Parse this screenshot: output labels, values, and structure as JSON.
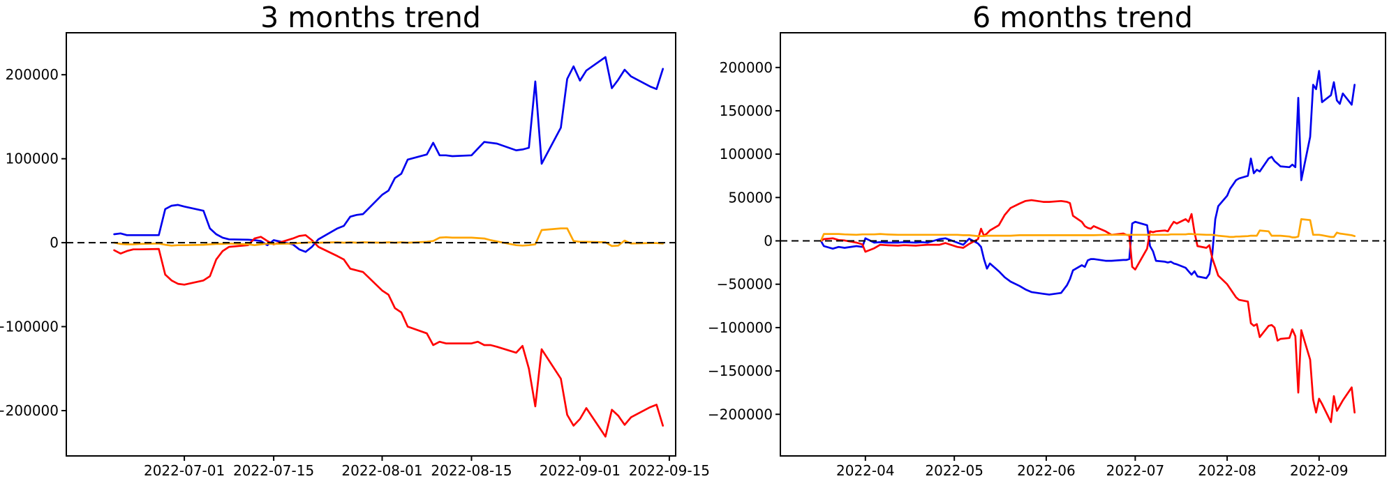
{
  "figure": {
    "background": "#ffffff",
    "text_color": "#000000"
  },
  "chart_data": [
    {
      "type": "line",
      "title": "3 months trend",
      "x_type": "date",
      "grid": false,
      "legend": null,
      "zero_line": {
        "color": "#000000",
        "style": "dashed"
      },
      "x_axis": {
        "domain": [
          "2022-06-12T12:00:00Z",
          "2022-09-16T00:00:00Z"
        ],
        "ticks": [
          {
            "date": "2022-07-01",
            "label": "2022-07-01"
          },
          {
            "date": "2022-07-15",
            "label": "2022-07-15"
          },
          {
            "date": "2022-08-01",
            "label": "2022-08-01"
          },
          {
            "date": "2022-08-15",
            "label": "2022-08-15"
          },
          {
            "date": "2022-09-01",
            "label": "2022-09-01"
          },
          {
            "date": "2022-09-15",
            "label": "2022-09-15"
          }
        ]
      },
      "y_axis": {
        "domain": [
          -254000,
          250000
        ],
        "ticks": [
          200000,
          100000,
          0,
          -100000,
          -200000
        ]
      },
      "x": [
        "2022-06-20",
        "2022-06-21",
        "2022-06-22",
        "2022-06-23",
        "2022-06-24",
        "2022-06-27",
        "2022-06-28",
        "2022-06-29",
        "2022-06-30",
        "2022-07-01",
        "2022-07-04",
        "2022-07-05",
        "2022-07-06",
        "2022-07-07",
        "2022-07-08",
        "2022-07-11",
        "2022-07-12",
        "2022-07-13",
        "2022-07-14",
        "2022-07-15",
        "2022-07-18",
        "2022-07-19",
        "2022-07-20",
        "2022-07-21",
        "2022-07-22",
        "2022-07-25",
        "2022-07-26",
        "2022-07-27",
        "2022-07-28",
        "2022-07-29",
        "2022-08-01",
        "2022-08-02",
        "2022-08-03",
        "2022-08-04",
        "2022-08-05",
        "2022-08-08",
        "2022-08-09",
        "2022-08-10",
        "2022-08-11",
        "2022-08-12",
        "2022-08-15",
        "2022-08-16",
        "2022-08-17",
        "2022-08-18",
        "2022-08-19",
        "2022-08-22",
        "2022-08-23",
        "2022-08-24",
        "2022-08-25",
        "2022-08-26",
        "2022-08-29",
        "2022-08-30",
        "2022-08-31",
        "2022-09-01",
        "2022-09-02",
        "2022-09-05",
        "2022-09-06",
        "2022-09-07",
        "2022-09-08",
        "2022-09-09",
        "2022-09-12",
        "2022-09-13",
        "2022-09-14"
      ],
      "series": [
        {
          "name": "blue-series",
          "color": "#0000ee",
          "values": [
            10000,
            11000,
            9000,
            9000,
            9000,
            9000,
            40000,
            44000,
            45000,
            43000,
            38000,
            17000,
            10000,
            6000,
            4000,
            3500,
            3000,
            2000,
            -3000,
            3000,
            -2000,
            -8000,
            -11000,
            -5000,
            4000,
            17000,
            20000,
            31000,
            33000,
            34000,
            57000,
            62000,
            77000,
            82000,
            99000,
            105000,
            119000,
            104000,
            104000,
            103000,
            104000,
            112000,
            120000,
            119000,
            118000,
            110000,
            111000,
            113000,
            192000,
            94000,
            137000,
            195000,
            210000,
            193000,
            205000,
            221000,
            184000,
            194000,
            206000,
            198000,
            186000,
            183000,
            207000
          ]
        },
        {
          "name": "red-series",
          "color": "#ff0000",
          "values": [
            -9000,
            -13000,
            -10000,
            -8000,
            -8000,
            -7500,
            -38000,
            -45000,
            -49000,
            -50000,
            -45000,
            -40000,
            -20000,
            -10000,
            -5000,
            -3000,
            5000,
            7000,
            2000,
            -2000,
            5000,
            8000,
            9000,
            3000,
            -5000,
            -16000,
            -20000,
            -31000,
            -33000,
            -35000,
            -57000,
            -62000,
            -78000,
            -83000,
            -100000,
            -108000,
            -122000,
            -118000,
            -120000,
            -120000,
            -120000,
            -118000,
            -122000,
            -122000,
            -124000,
            -131000,
            -123000,
            -150000,
            -195000,
            -127000,
            -162000,
            -205000,
            -218000,
            -210000,
            -197000,
            -231000,
            -199000,
            -206000,
            -217000,
            -208000,
            -196000,
            -193000,
            -218000
          ]
        },
        {
          "name": "orange-series",
          "color": "#ffa500",
          "values": [
            0,
            -1500,
            -2000,
            -2000,
            -1500,
            -1000,
            -2500,
            -3500,
            -3000,
            -3000,
            -2500,
            -2000,
            -1500,
            -1500,
            -1000,
            -2000,
            -3000,
            -2000,
            -1000,
            -1500,
            -1000,
            -500,
            0,
            500,
            0,
            500,
            0,
            500,
            0,
            500,
            0,
            500,
            0,
            500,
            0,
            1000,
            2000,
            6000,
            6500,
            6000,
            6000,
            5500,
            5000,
            3000,
            1500,
            -3000,
            -3500,
            -3000,
            -2000,
            15000,
            17000,
            17000,
            2000,
            1000,
            1000,
            500,
            -4000,
            -3500,
            2500,
            -1000,
            -500,
            -500,
            -1000
          ]
        }
      ]
    },
    {
      "type": "line",
      "title": "6 months trend",
      "x_type": "date",
      "grid": false,
      "legend": null,
      "zero_line": {
        "color": "#000000",
        "style": "dashed"
      },
      "x_axis": {
        "domain": [
          "2022-03-03T08:00:00Z",
          "2022-09-23T10:00:00Z"
        ],
        "ticks": [
          {
            "date": "2022-04-01",
            "label": "2022-04"
          },
          {
            "date": "2022-05-01",
            "label": "2022-05"
          },
          {
            "date": "2022-06-01",
            "label": "2022-06"
          },
          {
            "date": "2022-07-01",
            "label": "2022-07"
          },
          {
            "date": "2022-08-01",
            "label": "2022-08"
          },
          {
            "date": "2022-09-01",
            "label": "2022-09"
          }
        ]
      },
      "y_axis": {
        "domain": [
          -248000,
          240000
        ],
        "ticks": [
          200000,
          150000,
          100000,
          50000,
          0,
          -50000,
          -100000,
          -150000,
          -200000
        ]
      },
      "x": [
        "2022-03-17",
        "2022-03-18",
        "2022-03-21",
        "2022-03-23",
        "2022-03-25",
        "2022-03-29",
        "2022-03-31",
        "2022-04-01",
        "2022-04-04",
        "2022-04-06",
        "2022-04-08",
        "2022-04-12",
        "2022-04-14",
        "2022-04-18",
        "2022-04-20",
        "2022-04-22",
        "2022-04-26",
        "2022-04-28",
        "2022-05-02",
        "2022-05-04",
        "2022-05-06",
        "2022-05-09",
        "2022-05-10",
        "2022-05-11",
        "2022-05-12",
        "2022-05-13",
        "2022-05-16",
        "2022-05-18",
        "2022-05-20",
        "2022-05-23",
        "2022-05-25",
        "2022-05-27",
        "2022-05-31",
        "2022-06-02",
        "2022-06-06",
        "2022-06-08",
        "2022-06-09",
        "2022-06-10",
        "2022-06-13",
        "2022-06-14",
        "2022-06-15",
        "2022-06-16",
        "2022-06-17",
        "2022-06-21",
        "2022-06-23",
        "2022-06-27",
        "2022-06-28",
        "2022-06-29",
        "2022-06-30",
        "2022-07-01",
        "2022-07-05",
        "2022-07-06",
        "2022-07-07",
        "2022-07-08",
        "2022-07-11",
        "2022-07-12",
        "2022-07-13",
        "2022-07-14",
        "2022-07-15",
        "2022-07-18",
        "2022-07-19",
        "2022-07-20",
        "2022-07-21",
        "2022-07-22",
        "2022-07-25",
        "2022-07-26",
        "2022-07-27",
        "2022-07-28",
        "2022-07-29",
        "2022-08-01",
        "2022-08-02",
        "2022-08-03",
        "2022-08-04",
        "2022-08-05",
        "2022-08-08",
        "2022-08-09",
        "2022-08-10",
        "2022-08-11",
        "2022-08-12",
        "2022-08-15",
        "2022-08-16",
        "2022-08-17",
        "2022-08-18",
        "2022-08-19",
        "2022-08-22",
        "2022-08-23",
        "2022-08-24",
        "2022-08-25",
        "2022-08-26",
        "2022-08-29",
        "2022-08-30",
        "2022-08-31",
        "2022-09-01",
        "2022-09-02",
        "2022-09-05",
        "2022-09-06",
        "2022-09-07",
        "2022-09-08",
        "2022-09-09",
        "2022-09-12",
        "2022-09-13"
      ],
      "series": [
        {
          "name": "blue-series",
          "color": "#0000ee",
          "values": [
            0,
            -6000,
            -9000,
            -7000,
            -8000,
            -6000,
            -7000,
            3000,
            -2000,
            -1500,
            -2000,
            -2000,
            -1500,
            -2000,
            -1500,
            -2000,
            2000,
            3000,
            -2000,
            -4500,
            2500,
            -3000,
            -7000,
            -21000,
            -32000,
            -26000,
            -35000,
            -42000,
            -47000,
            -52000,
            -56000,
            -59000,
            -61000,
            -62000,
            -60000,
            -51000,
            -44000,
            -34000,
            -28000,
            -30000,
            -22500,
            -21000,
            -21000,
            -23000,
            -23000,
            -22000,
            -22000,
            -21000,
            20000,
            22000,
            18000,
            -6000,
            -12000,
            -23000,
            -24000,
            -25000,
            -24000,
            -26000,
            -27000,
            -31000,
            -35000,
            -39000,
            -35000,
            -41000,
            -43000,
            -38000,
            -15000,
            25000,
            40000,
            52000,
            60000,
            65000,
            70000,
            72000,
            75000,
            95000,
            78000,
            82000,
            80000,
            95000,
            97000,
            92000,
            89000,
            86000,
            85000,
            88000,
            85000,
            165000,
            70000,
            120000,
            180000,
            175000,
            196000,
            160000,
            168000,
            183000,
            162000,
            158000,
            170000,
            157000,
            180000
          ]
        },
        {
          "name": "red-series",
          "color": "#ff0000",
          "values": [
            0,
            2000,
            3000,
            1000,
            500,
            -2000,
            -4000,
            -12500,
            -8500,
            -4500,
            -5000,
            -5500,
            -5000,
            -5500,
            -5000,
            -4500,
            -4500,
            -2500,
            -7000,
            -8000,
            -3500,
            2000,
            14000,
            6000,
            8500,
            12000,
            18000,
            30000,
            38000,
            43000,
            46000,
            47000,
            45000,
            45000,
            46000,
            45000,
            43500,
            29000,
            22000,
            17000,
            15000,
            14000,
            17000,
            11000,
            7000,
            8500,
            7000,
            6500,
            -30000,
            -33000,
            -9000,
            11000,
            10000,
            11000,
            12000,
            11000,
            17000,
            22000,
            20000,
            25000,
            22000,
            31000,
            10000,
            -6000,
            -8000,
            -5000,
            -20000,
            -30000,
            -40000,
            -50000,
            -55000,
            -60000,
            -65000,
            -68000,
            -70000,
            -95000,
            -98000,
            -96000,
            -111000,
            -98000,
            -97000,
            -100000,
            -115000,
            -113000,
            -112000,
            -102000,
            -110000,
            -175000,
            -103000,
            -137000,
            -183000,
            -198000,
            -182000,
            -188000,
            -209000,
            -179000,
            -196000,
            -190000,
            -184000,
            -169000,
            -198000
          ]
        },
        {
          "name": "orange-series",
          "color": "#ffa500",
          "values": [
            0,
            8000,
            8000,
            8000,
            7500,
            7000,
            7500,
            7500,
            7500,
            8000,
            7500,
            7000,
            7000,
            7000,
            7000,
            7000,
            7000,
            7000,
            7000,
            6500,
            6500,
            5500,
            5500,
            5500,
            6000,
            6000,
            6000,
            6000,
            6000,
            6500,
            6500,
            6500,
            6500,
            6500,
            6500,
            6500,
            6500,
            6500,
            6500,
            6500,
            6500,
            6500,
            6500,
            7000,
            7000,
            7000,
            7000,
            7000,
            7000,
            7000,
            7000,
            7000,
            7000,
            7000,
            7000,
            7000,
            7500,
            7500,
            7500,
            7500,
            8000,
            8000,
            7500,
            7500,
            7000,
            7000,
            7000,
            6500,
            6000,
            5000,
            4500,
            4500,
            5000,
            5000,
            5500,
            6000,
            6000,
            6000,
            12000,
            11000,
            6000,
            6000,
            6000,
            6000,
            5000,
            4000,
            4000,
            5000,
            25000,
            24000,
            7000,
            7000,
            7000,
            6500,
            4500,
            4500,
            9500,
            8500,
            8000,
            6500,
            5500
          ]
        }
      ]
    }
  ]
}
